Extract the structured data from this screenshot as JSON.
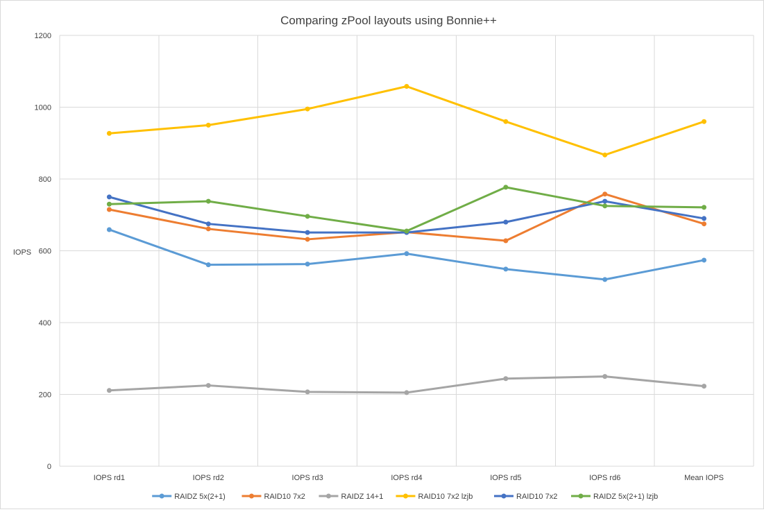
{
  "chart_data": {
    "type": "line",
    "title": "Comparing zPool layouts using Bonnie++",
    "ylabel": "IOPS",
    "xlabel": "",
    "ylim": [
      0,
      1200
    ],
    "yticks": [
      0,
      200,
      400,
      600,
      800,
      1000,
      1200
    ],
    "categories": [
      "IOPS rd1",
      "IOPS rd2",
      "IOPS rd3",
      "IOPS rd4",
      "IOPS rd5",
      "IOPS rd6",
      "Mean IOPS"
    ],
    "grid": true,
    "legend_position": "bottom",
    "series": [
      {
        "name": "RAIDZ 5x(2+1)",
        "color": "#5b9bd5",
        "values": [
          659,
          561,
          563,
          592,
          549,
          520,
          574
        ]
      },
      {
        "name": "RAID10 7x2",
        "color": "#ed7d31",
        "values": [
          715,
          661,
          632,
          652,
          628,
          758,
          675
        ]
      },
      {
        "name": "RAIDZ 14+1",
        "color": "#a5a5a5",
        "values": [
          211,
          225,
          207,
          205,
          244,
          250,
          223
        ]
      },
      {
        "name": "RAID10 7x2 lzjb",
        "color": "#ffc000",
        "values": [
          927,
          950,
          995,
          1058,
          960,
          867,
          960
        ]
      },
      {
        "name": "RAID10 7x2",
        "color": "#4472c4",
        "values": [
          750,
          675,
          651,
          651,
          680,
          738,
          690
        ]
      },
      {
        "name": "RAIDZ 5x(2+1) lzjb",
        "color": "#70ad47",
        "values": [
          730,
          738,
          696,
          655,
          777,
          725,
          721
        ]
      }
    ]
  }
}
